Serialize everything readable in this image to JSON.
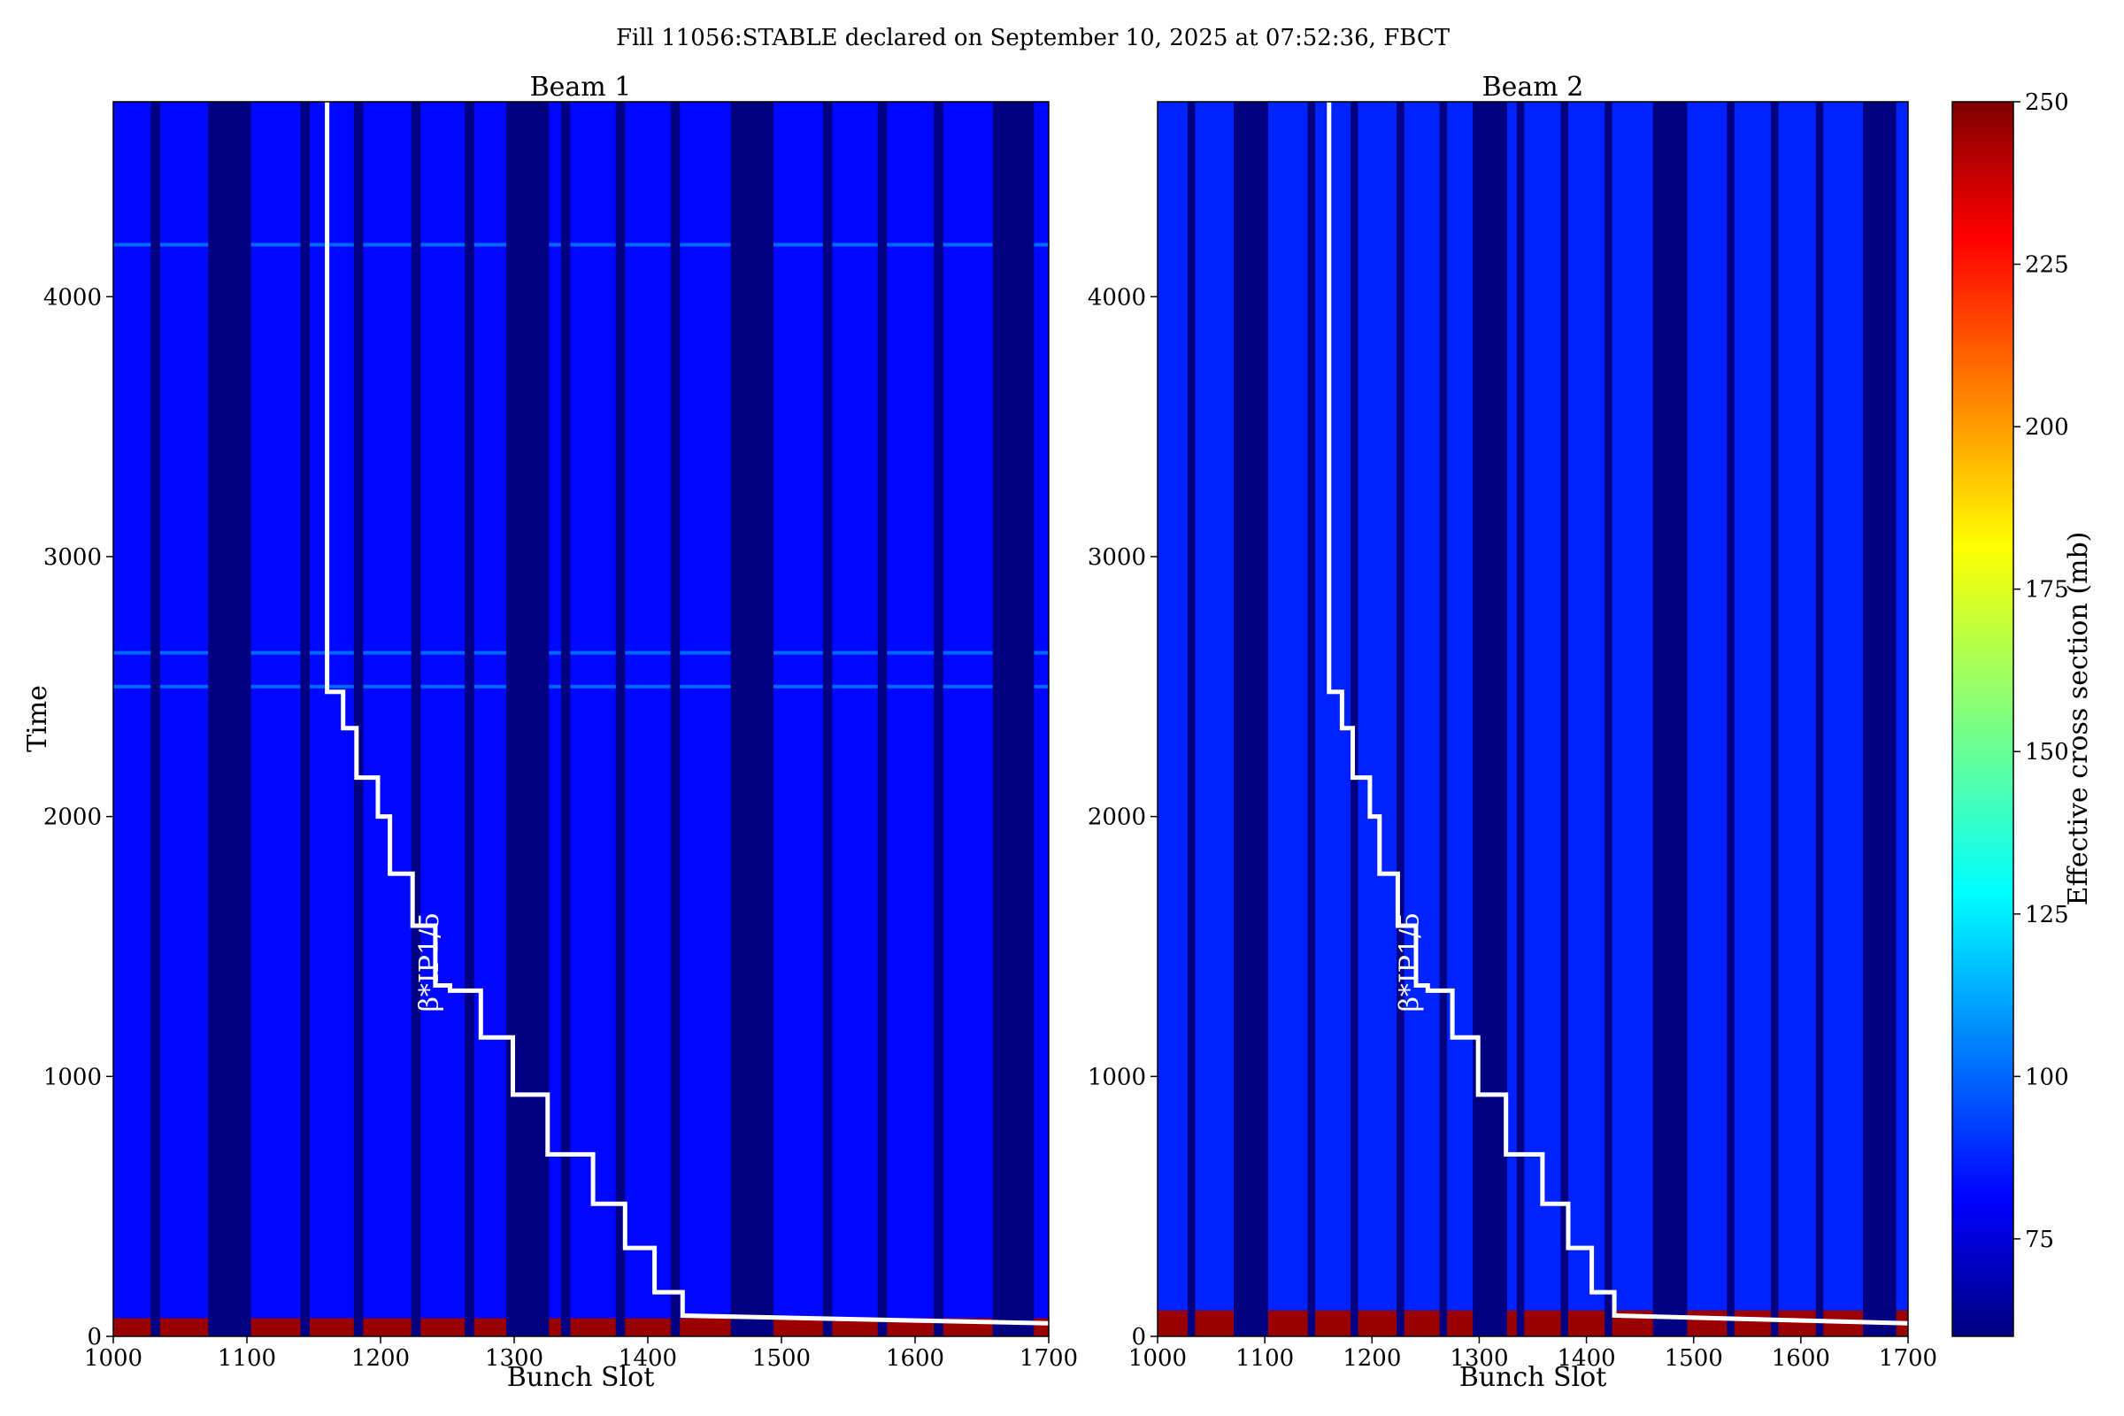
{
  "figure": {
    "title": "Fill 11056:STABLE declared on September 10, 2025 at 07:52:36, FBCT"
  },
  "chart_data": {
    "type": "heatmap",
    "colormap": "jet",
    "colorbar": {
      "label": "Effective cross section (mb)",
      "range": [
        60,
        250
      ],
      "ticks": [
        75,
        100,
        125,
        150,
        175,
        200,
        225,
        250
      ]
    },
    "panels": [
      {
        "title": "Beam 1",
        "xlabel": "Bunch Slot",
        "ylabel": "Time",
        "xlim": [
          1000,
          1700
        ],
        "ylim": [
          0,
          4750
        ],
        "xticks": [
          1000,
          1100,
          1200,
          1300,
          1400,
          1500,
          1600,
          1700
        ],
        "yticks": [
          0,
          1000,
          2000,
          3000,
          4000
        ],
        "background_value": 85,
        "empty_slot_bands": [
          [
            1028,
            1035
          ],
          [
            1071,
            1103
          ],
          [
            1140,
            1147
          ],
          [
            1180,
            1187
          ],
          [
            1223,
            1230
          ],
          [
            1263,
            1270
          ],
          [
            1294,
            1326
          ],
          [
            1335,
            1342
          ],
          [
            1376,
            1383
          ],
          [
            1417,
            1424
          ],
          [
            1462,
            1494
          ],
          [
            1531,
            1538
          ],
          [
            1572,
            1579
          ],
          [
            1614,
            1621
          ],
          [
            1658,
            1689
          ]
        ],
        "early_high_value": 245,
        "early_high_until": 70,
        "highlight_rows": [
          2500,
          2630,
          4200
        ],
        "annotation": "β*IP1/5",
        "annotation_at": [
          1243,
          1440
        ],
        "beta_line": [
          [
            1160,
            4750
          ],
          [
            1160,
            2480
          ],
          [
            1172,
            2480
          ],
          [
            1172,
            2340
          ],
          [
            1182,
            2340
          ],
          [
            1182,
            2150
          ],
          [
            1198,
            2150
          ],
          [
            1198,
            2000
          ],
          [
            1207,
            2000
          ],
          [
            1207,
            1780
          ],
          [
            1224,
            1780
          ],
          [
            1224,
            1580
          ],
          [
            1241,
            1580
          ],
          [
            1241,
            1350
          ],
          [
            1252,
            1350
          ],
          [
            1252,
            1330
          ],
          [
            1275,
            1330
          ],
          [
            1275,
            1150
          ],
          [
            1299,
            1150
          ],
          [
            1299,
            930
          ],
          [
            1325,
            930
          ],
          [
            1325,
            700
          ],
          [
            1359,
            700
          ],
          [
            1359,
            510
          ],
          [
            1383,
            510
          ],
          [
            1383,
            340
          ],
          [
            1405,
            340
          ],
          [
            1405,
            170
          ],
          [
            1426,
            170
          ],
          [
            1426,
            80
          ],
          [
            1700,
            50
          ]
        ]
      },
      {
        "title": "Beam 2",
        "xlabel": "Bunch Slot",
        "ylabel": "",
        "xlim": [
          1000,
          1700
        ],
        "ylim": [
          0,
          4750
        ],
        "xticks": [
          1000,
          1100,
          1200,
          1300,
          1400,
          1500,
          1600,
          1700
        ],
        "yticks": [
          0,
          1000,
          2000,
          3000,
          4000
        ],
        "background_value": 90,
        "empty_slot_bands": [
          [
            1028,
            1035
          ],
          [
            1071,
            1103
          ],
          [
            1140,
            1147
          ],
          [
            1180,
            1187
          ],
          [
            1223,
            1230
          ],
          [
            1263,
            1270
          ],
          [
            1294,
            1326
          ],
          [
            1335,
            1342
          ],
          [
            1376,
            1383
          ],
          [
            1417,
            1424
          ],
          [
            1462,
            1494
          ],
          [
            1531,
            1538
          ],
          [
            1572,
            1579
          ],
          [
            1614,
            1621
          ],
          [
            1658,
            1689
          ]
        ],
        "early_high_value": 245,
        "early_high_until": 100,
        "highlight_rows": [],
        "annotation": "β*IP1/5",
        "annotation_at": [
          1243,
          1440
        ],
        "beta_line": [
          [
            1160,
            4750
          ],
          [
            1160,
            2480
          ],
          [
            1172,
            2480
          ],
          [
            1172,
            2340
          ],
          [
            1182,
            2340
          ],
          [
            1182,
            2150
          ],
          [
            1198,
            2150
          ],
          [
            1198,
            2000
          ],
          [
            1207,
            2000
          ],
          [
            1207,
            1780
          ],
          [
            1224,
            1780
          ],
          [
            1224,
            1580
          ],
          [
            1241,
            1580
          ],
          [
            1241,
            1350
          ],
          [
            1252,
            1350
          ],
          [
            1252,
            1330
          ],
          [
            1275,
            1330
          ],
          [
            1275,
            1150
          ],
          [
            1299,
            1150
          ],
          [
            1299,
            930
          ],
          [
            1325,
            930
          ],
          [
            1325,
            700
          ],
          [
            1359,
            700
          ],
          [
            1359,
            510
          ],
          [
            1383,
            510
          ],
          [
            1383,
            340
          ],
          [
            1405,
            340
          ],
          [
            1405,
            170
          ],
          [
            1426,
            170
          ],
          [
            1426,
            80
          ],
          [
            1700,
            50
          ]
        ]
      }
    ]
  }
}
